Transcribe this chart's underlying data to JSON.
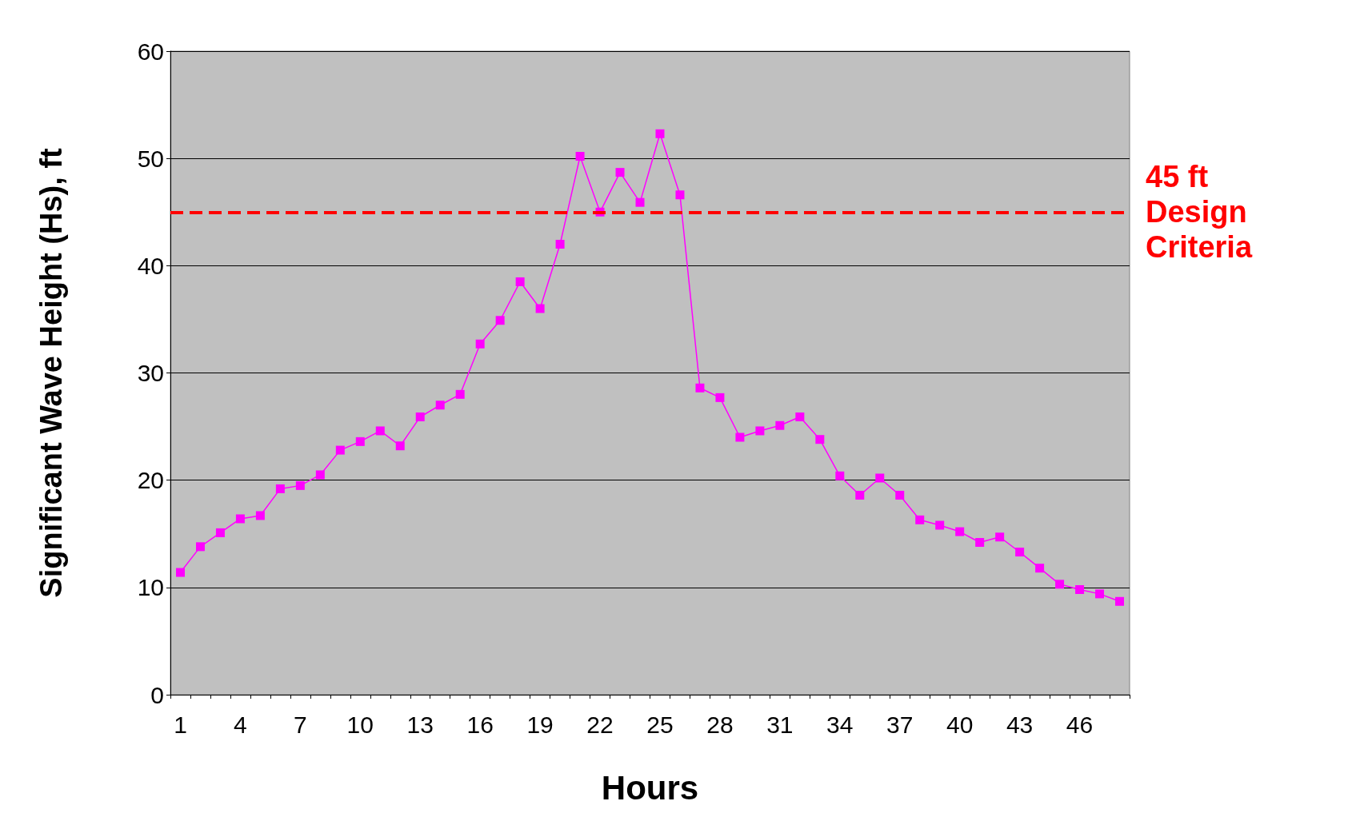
{
  "chart_data": {
    "type": "line",
    "xlabel": "Hours",
    "ylabel": "Significant Wave Height (Hs), ft",
    "categories": [
      "1",
      null,
      null,
      "4",
      null,
      null,
      "7",
      null,
      null,
      "10",
      null,
      null,
      "13",
      null,
      null,
      "16",
      null,
      null,
      "19",
      null,
      null,
      "22",
      null,
      null,
      "25",
      null,
      null,
      "28",
      null,
      null,
      "31",
      null,
      null,
      "34",
      null,
      null,
      "37",
      null,
      null,
      "40",
      null,
      null,
      "43",
      null,
      null,
      "46",
      null,
      null
    ],
    "series": [
      {
        "color": "#ff00ff",
        "values": [
          11.4,
          13.8,
          15.1,
          16.4,
          16.7,
          19.2,
          19.5,
          20.5,
          22.8,
          23.6,
          24.6,
          23.2,
          25.9,
          27.0,
          28.0,
          32.7,
          34.9,
          38.5,
          36.0,
          42.0,
          50.2,
          45.0,
          48.7,
          45.9,
          52.3,
          46.6,
          28.6,
          27.7,
          24.0,
          24.6,
          25.1,
          25.9,
          23.8,
          20.4,
          18.6,
          20.2,
          18.6,
          16.3,
          15.8,
          15.2,
          14.2,
          14.7,
          13.3,
          11.8,
          10.3,
          9.8,
          9.4,
          8.7
        ]
      }
    ],
    "ylim": [
      0,
      60
    ],
    "yticks": [
      0,
      10,
      20,
      30,
      40,
      50,
      60
    ],
    "ref_lines": [
      {
        "axis": "y",
        "value": 45,
        "label": "45 ft Design Criteria",
        "color": "#ff0000",
        "line_style": "dashed"
      }
    ],
    "grid": "y",
    "marker": "square",
    "line_style": "solid"
  }
}
